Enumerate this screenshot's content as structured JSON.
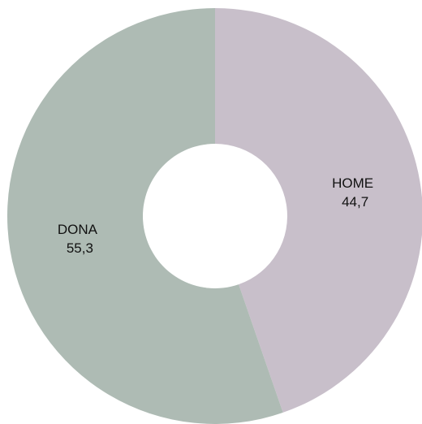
{
  "chart_data": {
    "type": "pie",
    "categories": [
      "HOME",
      "DONA"
    ],
    "values": [
      44.7,
      55.3
    ],
    "value_labels": [
      "44,7",
      "55,3"
    ],
    "colors": [
      "#c8bfca",
      "#aebbb4"
    ],
    "donut": true
  }
}
